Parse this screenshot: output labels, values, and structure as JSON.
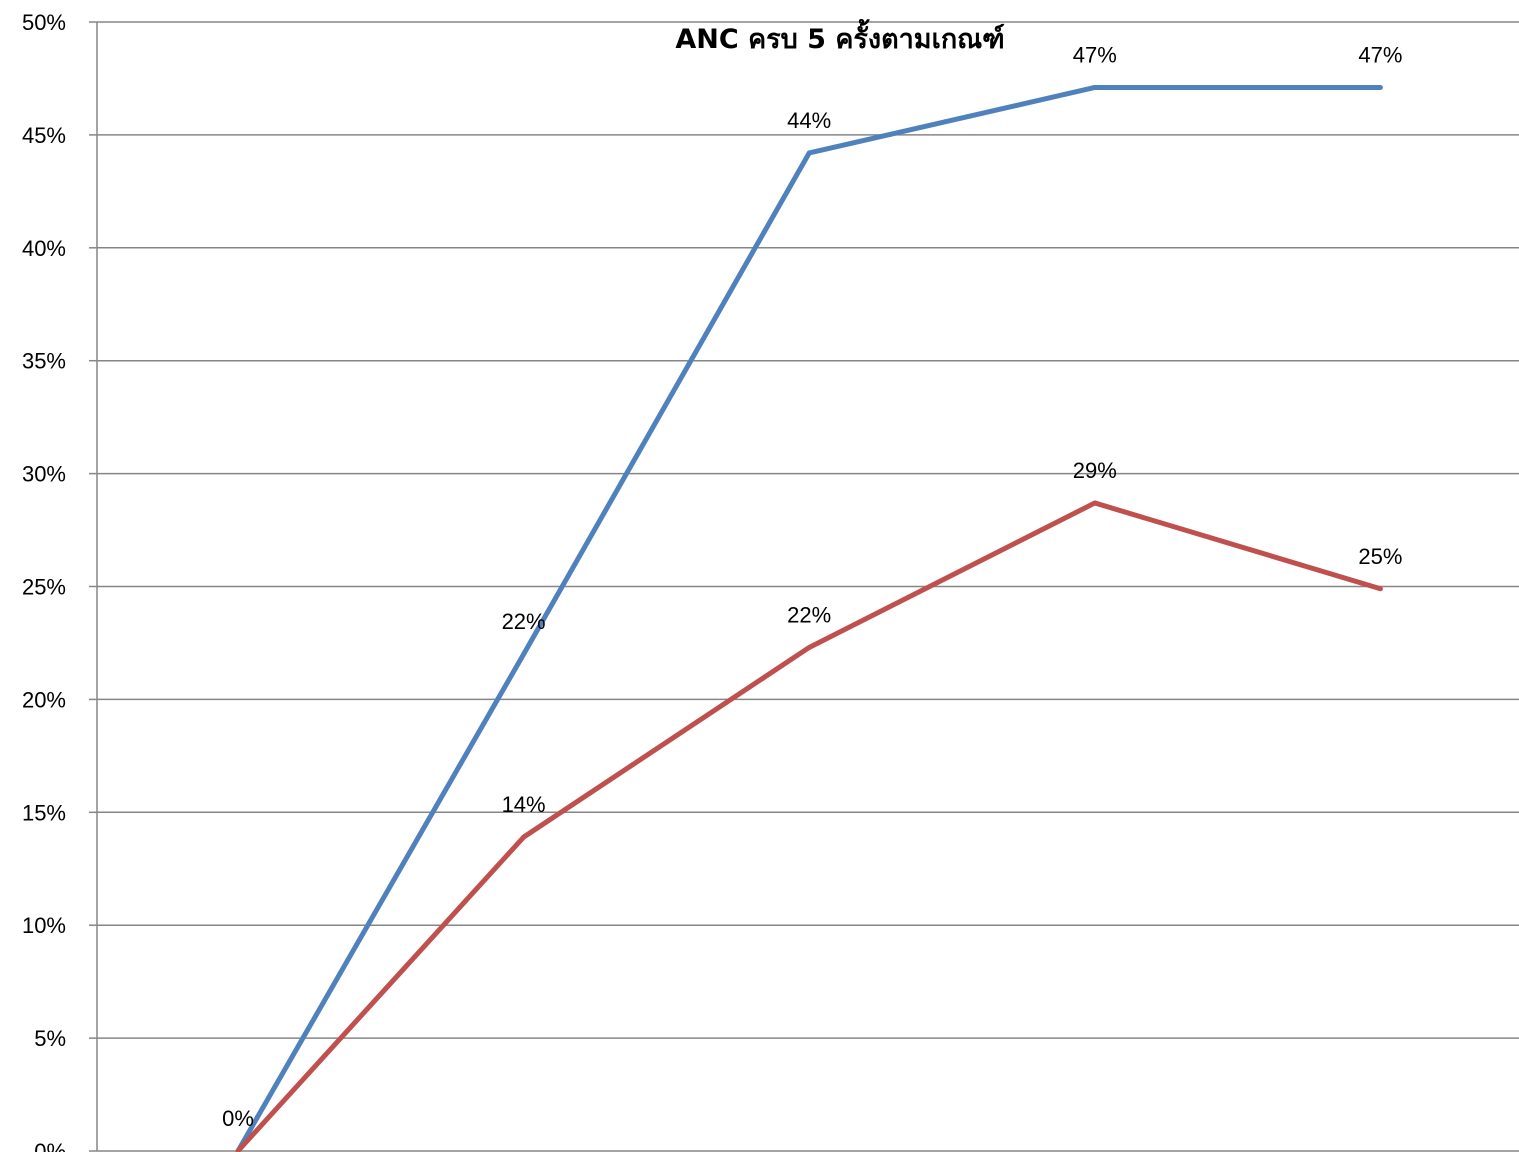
{
  "chart_data": {
    "type": "line",
    "title": "ANC ครบ 5 ครั้งตามเกณฑ์",
    "xlabel": "",
    "ylabel": "",
    "categories": [
      "",
      "",
      "",
      "",
      ""
    ],
    "ylim": [
      0,
      0.5
    ],
    "ytick_step": 0.05,
    "ytick_labels": [
      "0%",
      "5%",
      "10%",
      "15%",
      "20%",
      "25%",
      "30%",
      "35%",
      "40%",
      "45%",
      "50%"
    ],
    "grid": true,
    "legend": "none",
    "series": [
      {
        "color": "#4F81BD",
        "values": [
          0.0,
          0.22,
          0.442,
          0.471,
          0.471
        ],
        "labels": [
          "0%",
          "22%",
          "44%",
          "47%",
          "47%"
        ]
      },
      {
        "color": "#C0504D",
        "values": [
          0.0,
          0.139,
          0.223,
          0.287,
          0.249
        ],
        "labels": [
          "",
          "14%",
          "22%",
          "29%",
          "25%"
        ]
      }
    ]
  }
}
